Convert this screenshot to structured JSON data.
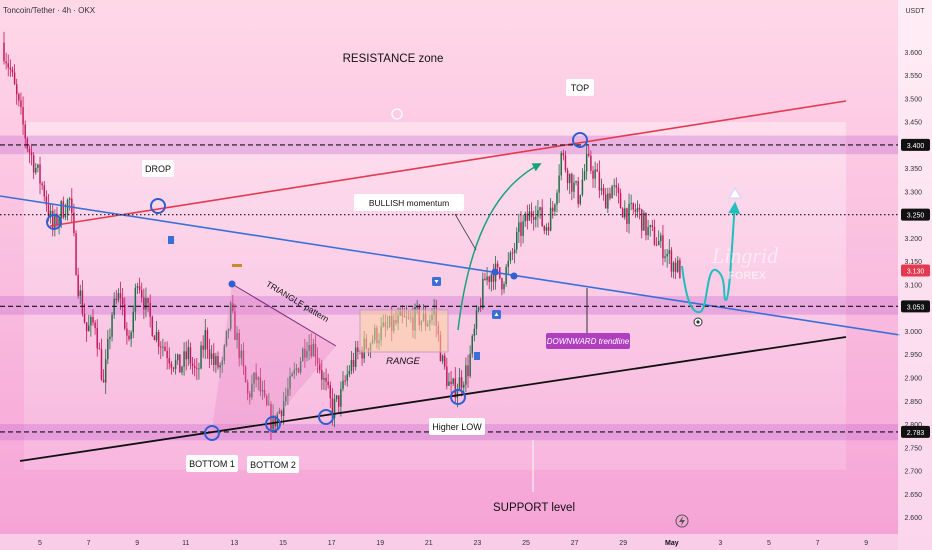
{
  "header": {
    "symbol_title": "Toncoin/Tether · 4h · OKX",
    "currency": "USDT"
  },
  "colors": {
    "background_top": "#ffd3e6",
    "background_bottom": "#f4a4d8",
    "candle_up": "#1f6b45",
    "candle_down": "#c2185b",
    "resistance_line": "#e53950",
    "downtrend_line": "#3a6fd8",
    "support_line": "#111111",
    "zone_fill": "#c56ad0",
    "marker": "#2f5fd0",
    "path_arrow": "#1fbfbf",
    "momentum_arrow": "#1aa37a",
    "current_price_badge": "#e53950"
  },
  "chart_data": {
    "type": "candlestick",
    "title": "Toncoin/Tether · 4h · OKX",
    "ylim": [
      2.57,
      3.69
    ],
    "y_ticks": [
      "3.600",
      "3.550",
      "3.500",
      "3.450",
      "3.400",
      "3.350",
      "3.300",
      "3.250",
      "3.200",
      "3.150",
      "3.100",
      "3.050",
      "3.000",
      "2.950",
      "2.900",
      "2.850",
      "2.800",
      "2.750",
      "2.700",
      "2.650",
      "2.600"
    ],
    "x_ticks": [
      "5",
      "7",
      "9",
      "11",
      "13",
      "15",
      "17",
      "19",
      "21",
      "23",
      "25",
      "27",
      "29",
      "May",
      "3",
      "5",
      "7",
      "9"
    ],
    "price_lines": [
      {
        "value": 3.4,
        "label": "3.400",
        "kind": "dashed"
      },
      {
        "value": 3.25,
        "label": "3.250",
        "kind": "dotted"
      },
      {
        "value": 3.053,
        "label": "3.053",
        "kind": "dashed"
      },
      {
        "value": 2.783,
        "label": "2.783",
        "kind": "dashed"
      }
    ],
    "current_price": {
      "value": 3.13,
      "label": "3.130"
    },
    "zones": [
      {
        "name": "resistance",
        "from": 3.38,
        "to": 3.42
      },
      {
        "name": "mid-support",
        "from": 3.035,
        "to": 3.075
      },
      {
        "name": "support",
        "from": 2.765,
        "to": 2.8
      }
    ],
    "close_path": [
      3.62,
      3.56,
      3.48,
      3.4,
      3.35,
      3.3,
      3.22,
      3.26,
      3.28,
      3.1,
      3.0,
      3.02,
      2.88,
      3.04,
      3.08,
      2.96,
      3.12,
      3.05,
      3.0,
      2.97,
      2.94,
      2.92,
      2.95,
      2.9,
      2.99,
      2.93,
      2.92,
      3.04,
      2.96,
      2.86,
      2.9,
      2.84,
      2.8,
      2.84,
      2.88,
      2.93,
      2.98,
      2.96,
      2.89,
      2.83,
      2.86,
      2.92,
      2.95,
      2.97,
      2.99,
      3.0,
      3.01,
      3.02,
      3.02,
      3.03,
      3.02,
      3.04,
      2.93,
      2.87,
      2.89,
      2.92,
      3.02,
      3.11,
      3.13,
      3.11,
      3.15,
      3.21,
      3.24,
      3.27,
      3.22,
      3.26,
      3.38,
      3.33,
      3.29,
      3.36,
      3.34,
      3.28,
      3.31,
      3.27,
      3.25,
      3.26,
      3.22,
      3.2,
      3.18,
      3.15,
      3.13
    ],
    "annotations": [
      "RESISTANCE zone",
      "TOP",
      "DROP",
      "BULLISH momentum",
      "TRIANGLE pattern",
      "RANGE",
      "DOWNWARD trendline",
      "Higher LOW",
      "BOTTOM 1",
      "BOTTOM 2",
      "SUPPORT level"
    ],
    "watermark": {
      "main": "Lingrid",
      "sub": "FOREX"
    }
  }
}
